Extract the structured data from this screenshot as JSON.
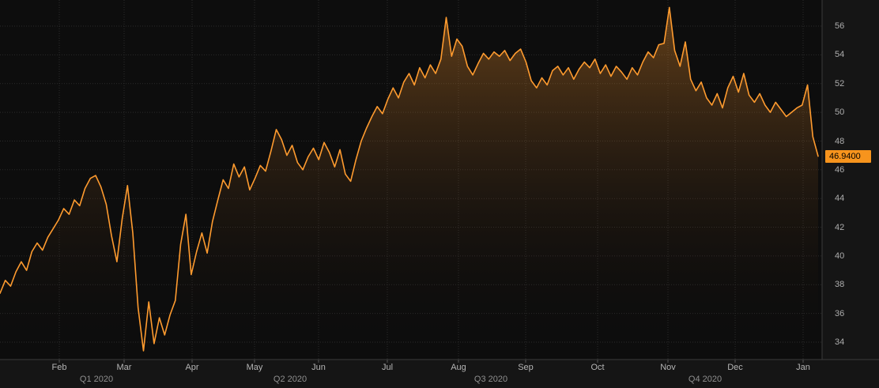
{
  "chart_data": {
    "type": "area",
    "title": "",
    "xlabel": "",
    "ylabel": "",
    "grid": true,
    "legend": "none",
    "ylim": [
      33,
      57.5
    ],
    "y_ticks": [
      34,
      36,
      38,
      40,
      42,
      44,
      46,
      48,
      50,
      52,
      54,
      56
    ],
    "x_ticks": [
      "Feb",
      "Mar",
      "Apr",
      "May",
      "Jun",
      "Jul",
      "Aug",
      "Sep",
      "Oct",
      "Nov",
      "Dec",
      "Jan"
    ],
    "quarter_labels": [
      "Q1 2020",
      "Q2 2020",
      "Q3 2020",
      "Q4 2020"
    ],
    "last_price": 46.94,
    "last_price_label": "46.9400",
    "line_color": "#ff9b2f",
    "tag_color": "#f7941d",
    "values": [
      37.4,
      38.3,
      37.9,
      38.9,
      39.6,
      39.0,
      40.3,
      40.9,
      40.4,
      41.3,
      41.9,
      42.5,
      43.3,
      42.9,
      43.9,
      43.5,
      44.7,
      45.4,
      45.6,
      44.8,
      43.6,
      41.4,
      39.6,
      42.6,
      44.9,
      41.6,
      36.4,
      33.4,
      36.8,
      33.9,
      35.7,
      34.5,
      35.9,
      36.9,
      40.8,
      42.9,
      38.7,
      40.3,
      41.6,
      40.2,
      42.4,
      43.9,
      45.3,
      44.7,
      46.4,
      45.5,
      46.2,
      44.6,
      45.4,
      46.3,
      45.9,
      47.3,
      48.8,
      48.1,
      47.0,
      47.7,
      46.5,
      46.0,
      46.9,
      47.5,
      46.7,
      47.9,
      47.2,
      46.2,
      47.4,
      45.7,
      45.2,
      46.7,
      48.0,
      48.9,
      49.7,
      50.4,
      49.9,
      50.9,
      51.7,
      51.0,
      52.1,
      52.7,
      51.9,
      53.1,
      52.4,
      53.3,
      52.7,
      53.7,
      56.6,
      53.9,
      55.1,
      54.6,
      53.2,
      52.6,
      53.4,
      54.1,
      53.7,
      54.2,
      53.9,
      54.3,
      53.6,
      54.1,
      54.4,
      53.5,
      52.2,
      51.7,
      52.4,
      51.9,
      52.9,
      53.2,
      52.6,
      53.1,
      52.3,
      53.0,
      53.5,
      53.1,
      53.7,
      52.7,
      53.3,
      52.5,
      53.2,
      52.8,
      52.3,
      53.1,
      52.6,
      53.5,
      54.2,
      53.8,
      54.7,
      54.8,
      57.3,
      54.3,
      53.2,
      54.9,
      52.3,
      51.5,
      52.1,
      51.0,
      50.5,
      51.3,
      50.3,
      51.7,
      52.5,
      51.4,
      52.7,
      51.2,
      50.7,
      51.3,
      50.5,
      50.0,
      50.7,
      50.2,
      49.7,
      50.0,
      50.3,
      50.5,
      51.9,
      48.3,
      46.94
    ]
  }
}
